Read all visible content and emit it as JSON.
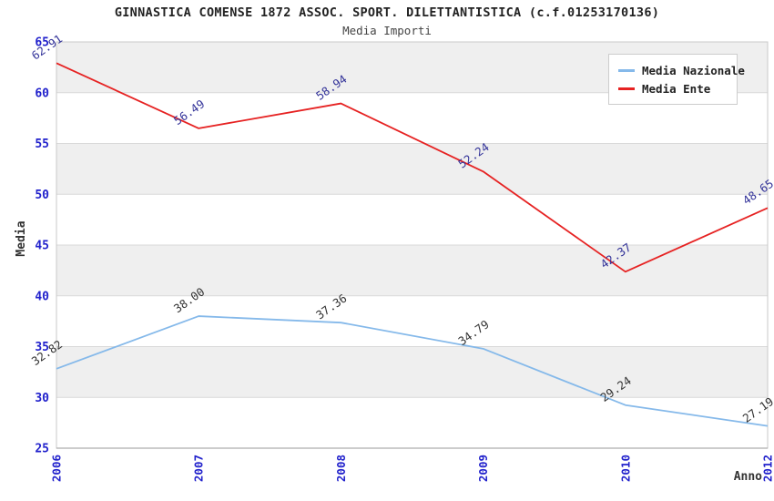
{
  "chart_data": {
    "type": "line",
    "title": "GINNASTICA COMENSE 1872 ASSOC. SPORT. DILETTANTISTICA (c.f.01253170136)",
    "subtitle": "Media Importi",
    "xlabel": "Anno",
    "ylabel": "Media",
    "categories": [
      "2006",
      "2007",
      "2008",
      "2009",
      "2010",
      "2012"
    ],
    "series": [
      {
        "name": "Media Nazionale",
        "color": "#85b9ea",
        "label_color": "#333333",
        "values": [
          32.82,
          38.0,
          37.36,
          34.79,
          29.24,
          27.19
        ]
      },
      {
        "name": "Media Ente",
        "color": "#e62222",
        "label_color": "#333399",
        "values": [
          62.91,
          56.49,
          58.94,
          52.24,
          42.37,
          48.65
        ]
      }
    ],
    "ylim": [
      25,
      65
    ],
    "ytick_step": 5,
    "yticks": [
      65,
      60,
      55,
      50,
      45,
      40,
      35,
      30,
      25
    ],
    "legend_position": "top-right",
    "grid": "horizontal-bands",
    "colors": {
      "tick_label": "#2222cc",
      "band": "#efefef",
      "gridline": "#d9d9d9",
      "border": "#c9c9c9",
      "axis_line": "#9a9a9a",
      "axis_text": "#333333"
    }
  }
}
